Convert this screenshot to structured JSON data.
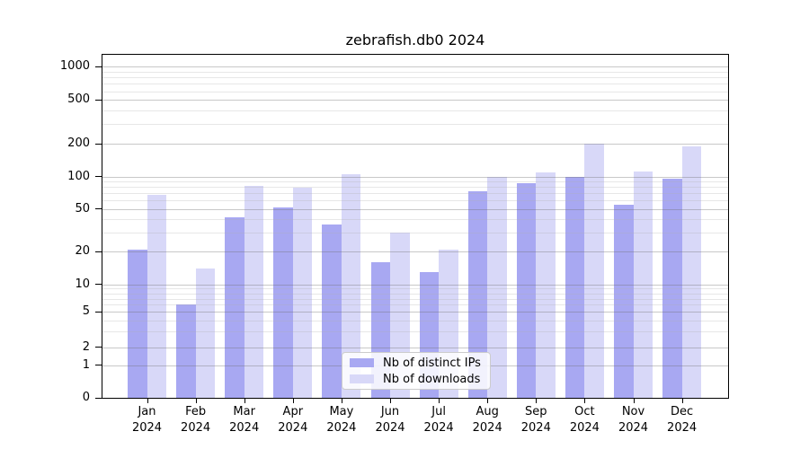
{
  "chart_data": {
    "type": "bar",
    "title": "zebrafish.db0 2024",
    "categories": [
      "Jan 2024",
      "Feb 2024",
      "Mar 2024",
      "Apr 2024",
      "May 2024",
      "Jun 2024",
      "Jul 2024",
      "Aug 2024",
      "Sep 2024",
      "Oct 2024",
      "Nov 2024",
      "Dec 2024"
    ],
    "series": [
      {
        "name": "Nb of distinct IPs",
        "color": "#a8a8f2",
        "values": [
          21,
          6,
          42,
          52,
          36,
          16,
          13,
          73,
          87,
          100,
          55,
          96
        ]
      },
      {
        "name": "Nb of downloads",
        "color": "#d8d8f8",
        "values": [
          68,
          14,
          82,
          79,
          105,
          30,
          21,
          100,
          110,
          200,
          112,
          190
        ]
      }
    ],
    "xlabel": "",
    "ylabel": "",
    "yscale": "quasi-log (linear 0-1, compressed log below 10, log above)",
    "y_ticks": [
      0,
      1,
      2,
      5,
      10,
      20,
      50,
      100,
      200,
      500,
      1000
    ],
    "y_minor_ticks": [
      3,
      4,
      6,
      7,
      8,
      9,
      30,
      40,
      60,
      70,
      80,
      90,
      300,
      400,
      600,
      700,
      800,
      900
    ],
    "ylim": [
      0,
      1285
    ],
    "grid": true,
    "legend_position": "lower center"
  }
}
